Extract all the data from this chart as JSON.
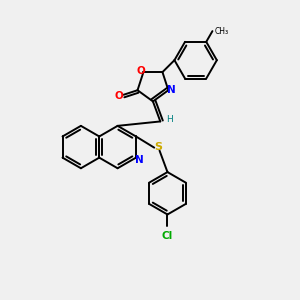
{
  "background_color": "#f0f0f0",
  "bond_color": "#000000",
  "atom_colors": {
    "O": "#ff0000",
    "N": "#0000ff",
    "S": "#ccaa00",
    "Cl": "#00aa00",
    "H": "#008080",
    "C": "#000000"
  },
  "figsize": [
    3.0,
    3.0
  ],
  "dpi": 100
}
